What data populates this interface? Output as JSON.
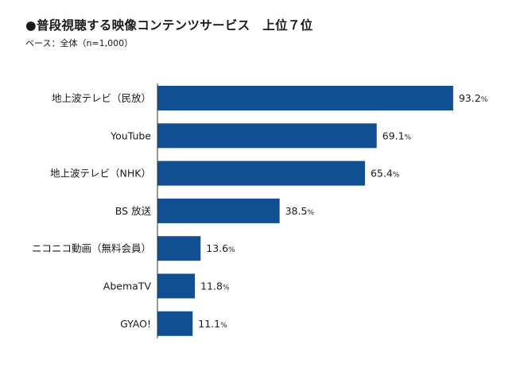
{
  "header": {
    "title": "●普段視聴する映像コンテンツサービス　上位７位",
    "subtitle": "ベース：全体（n=1,000）"
  },
  "colors": {
    "bar": "#0f4f92",
    "axis": "#333333"
  },
  "chart_data": {
    "type": "bar",
    "orientation": "horizontal",
    "categories": [
      "地上波テレビ（民放）",
      "YouTube",
      "地上波テレビ（NHK）",
      "BS 放送",
      "ニコニコ動画（無料会員）",
      "AbemaTV",
      "GYAO!"
    ],
    "values": [
      93.2,
      69.1,
      65.4,
      38.5,
      13.6,
      11.8,
      11.1
    ],
    "value_labels": [
      "93.2",
      "69.1",
      "65.4",
      "38.5",
      "13.6",
      "11.8",
      "11.1"
    ],
    "unit": "%",
    "xlim": [
      0,
      100
    ],
    "grid": false
  }
}
